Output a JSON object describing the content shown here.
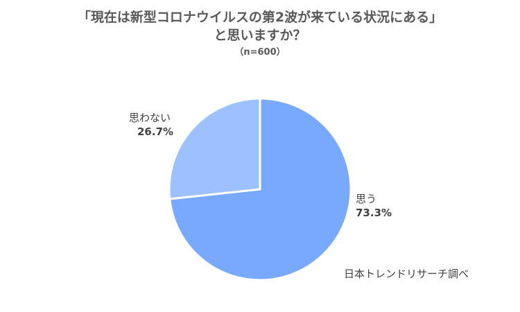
{
  "chart_data": {
    "type": "pie",
    "title_line1": "「現在は新型コロナウイルスの第2波が来ている状況にある」",
    "title_line2": "と思いますか？",
    "subtitle": "（n=600）",
    "slices": [
      {
        "label": "思う",
        "value": 73.3,
        "display": "73.3%",
        "color": "#78a9ff"
      },
      {
        "label": "思わない",
        "value": 26.7,
        "display": "26.7%",
        "color": "#9dc0ff"
      }
    ],
    "source": "日本トレンドリサーチ調べ",
    "legend": "none"
  }
}
